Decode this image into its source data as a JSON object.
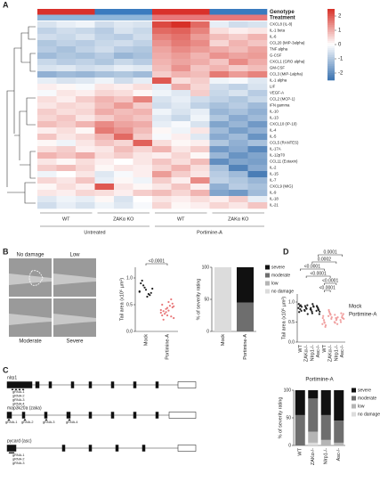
{
  "panels": [
    "A",
    "B",
    "C",
    "D"
  ],
  "images": {
    "labels": [
      "No damage",
      "Low",
      "Moderate",
      "Severe"
    ]
  },
  "diagram": {
    "genes": [
      {
        "name": "nlrp1",
        "guides": [
          "gRNA-1",
          "gRNA-2",
          "gRNA-3",
          "gRNA-4"
        ]
      },
      {
        "name": "map3k20a (zaka)",
        "guides": [
          "gRNA-1",
          "gRNA-2",
          "gRNA-3",
          "gRNA-4"
        ]
      },
      {
        "name": "pycard (asc)",
        "guides": [
          "gRNA-1",
          "gRNA-2",
          "gRNA-3"
        ]
      }
    ]
  },
  "chart_data": [
    {
      "type": "heatmap",
      "annotation_rows": [
        {
          "name": "Genotype",
          "colors": [
            "#d9312b",
            "#d9312b",
            "#d9312b",
            "#3a7bbf",
            "#3a7bbf",
            "#3a7bbf",
            "#d9312b",
            "#d9312b",
            "#d9312b",
            "#3a7bbf",
            "#3a7bbf",
            "#3a7bbf"
          ]
        },
        {
          "name": "Treatment",
          "colors": [
            "#8fb6da",
            "#8fb6da",
            "#8fb6da",
            "#8fb6da",
            "#8fb6da",
            "#8fb6da",
            "#e8787a",
            "#e8787a",
            "#e8787a",
            "#e8787a",
            "#e8787a",
            "#e8787a"
          ]
        }
      ],
      "column_groups": [
        "WT",
        "ZAKα KO",
        "WT",
        "ZAKα KO"
      ],
      "treatment_groups": [
        "Untreated",
        "Portimine-A"
      ],
      "rows": [
        "CXCL8 (IL-8)",
        "IL-1 beta",
        "IL-6",
        "CCL20 (MIP-3alpha)",
        "TNF alpha",
        "G-CSF",
        "CXCL1 (GRO alpha)",
        "GM-CSF",
        "CCL3 (MIP-1alpha)",
        "IL-1 alpha",
        "LIF",
        "VEGF-A",
        "CCL2 (MCP-1)",
        "IFN gamma",
        "IL-10",
        "IL-13",
        "CXCL10 (IP-10)",
        "IL-4",
        "IL-5",
        "CCL5 (RANTES)",
        "IL-17A",
        "IL-12p70",
        "CCL11 (Eotaxin)",
        "IL-2",
        "IL-15",
        "IL-7",
        "CXCL9 (MIG)",
        "IL-9",
        "IL-18",
        "IL-21"
      ],
      "values": [
        [
          -0.5,
          -0.3,
          -0.2,
          -0.6,
          -0.4,
          -0.5,
          2.2,
          2.5,
          1.8,
          -0.3,
          -0.6,
          -0.5
        ],
        [
          -0.8,
          -0.6,
          -0.7,
          -0.9,
          -0.5,
          -0.7,
          1.8,
          1.9,
          1.5,
          0.4,
          0.2,
          0.3
        ],
        [
          -0.6,
          -0.7,
          -0.5,
          -0.8,
          -0.9,
          -0.6,
          1.5,
          1.7,
          1.2,
          0.8,
          0.6,
          0.9
        ],
        [
          -1.0,
          -0.8,
          -0.9,
          -0.7,
          -0.6,
          -0.8,
          1.3,
          1.6,
          1.4,
          0.5,
          0.9,
          0.7
        ],
        [
          -0.9,
          -1.1,
          -0.8,
          -0.6,
          -0.9,
          -1.0,
          1.1,
          1.4,
          1.2,
          1.0,
          0.8,
          1.1
        ],
        [
          -1.2,
          -1.0,
          -1.1,
          -0.9,
          -1.3,
          -1.1,
          1.0,
          1.2,
          0.9,
          1.3,
          1.1,
          1.2
        ],
        [
          -0.7,
          -0.9,
          -0.8,
          -1.0,
          -0.7,
          -0.9,
          0.9,
          1.1,
          1.0,
          0.7,
          1.4,
          1.0
        ],
        [
          -0.5,
          -0.4,
          -0.6,
          -0.5,
          -0.3,
          -0.4,
          0.8,
          1.3,
          0.7,
          0.9,
          0.6,
          0.8
        ],
        [
          -1.4,
          -1.2,
          -1.3,
          -1.1,
          -1.0,
          -1.2,
          0.6,
          0.9,
          0.8,
          1.6,
          1.2,
          1.5
        ],
        [
          -0.3,
          -0.5,
          -0.4,
          -0.2,
          -0.6,
          -0.3,
          2.0,
          0.4,
          0.6,
          -0.2,
          -0.1,
          -0.4
        ],
        [
          0.2,
          0.1,
          -0.1,
          0.3,
          0.2,
          0.4,
          -0.3,
          1.0,
          0.5,
          -0.6,
          -0.8,
          -0.5
        ],
        [
          -0.1,
          0.3,
          0.2,
          0.5,
          0.4,
          0.1,
          -0.2,
          -0.4,
          0.6,
          -0.7,
          -0.5,
          -0.9
        ],
        [
          0.4,
          0.2,
          0.6,
          0.9,
          0.7,
          1.5,
          -0.5,
          -0.3,
          -0.6,
          -0.8,
          -1.0,
          -0.7
        ],
        [
          0.3,
          0.5,
          0.4,
          0.8,
          1.2,
          0.6,
          -0.6,
          -0.4,
          -0.8,
          -1.1,
          -0.9,
          -1.2
        ],
        [
          0.6,
          0.4,
          0.5,
          1.0,
          0.8,
          0.9,
          -0.2,
          -0.5,
          -0.3,
          -1.3,
          -1.1,
          -1.4
        ],
        [
          0.5,
          0.7,
          0.3,
          0.6,
          0.9,
          0.7,
          -0.4,
          -0.7,
          -0.2,
          -1.0,
          -1.5,
          -1.2
        ],
        [
          0.8,
          0.6,
          0.9,
          1.4,
          1.1,
          1.0,
          -0.3,
          -0.1,
          -0.5,
          -1.6,
          -1.3,
          -1.8
        ],
        [
          0.2,
          0.4,
          0.1,
          1.6,
          1.3,
          0.8,
          0.1,
          -0.2,
          0.3,
          -1.2,
          -1.7,
          -1.4
        ],
        [
          0.7,
          0.3,
          0.5,
          0.9,
          1.8,
          0.6,
          -0.1,
          0.2,
          -0.4,
          -1.5,
          -1.2,
          -1.9
        ],
        [
          0.1,
          -0.2,
          0.3,
          0.7,
          0.5,
          1.9,
          0.4,
          0.1,
          0.2,
          -1.0,
          -1.4,
          -1.1
        ],
        [
          0.4,
          0.6,
          0.2,
          0.3,
          0.8,
          0.5,
          0.9,
          0.3,
          0.6,
          -1.8,
          -1.5,
          -2.1
        ],
        [
          0.9,
          0.7,
          1.0,
          0.4,
          0.6,
          0.3,
          0.2,
          0.5,
          0.1,
          -1.3,
          -1.9,
          -1.6
        ],
        [
          0.3,
          0.1,
          0.4,
          0.2,
          0.0,
          0.3,
          0.7,
          0.4,
          0.8,
          -2.0,
          -1.6,
          -1.7
        ],
        [
          0.6,
          0.8,
          0.5,
          0.1,
          0.3,
          0.2,
          0.5,
          0.9,
          0.4,
          -1.1,
          -2.2,
          -1.5
        ],
        [
          -0.2,
          0.0,
          0.3,
          -0.4,
          -0.1,
          0.2,
          1.2,
          0.6,
          0.3,
          -0.9,
          -1.2,
          -2.3
        ],
        [
          0.5,
          0.3,
          0.7,
          -0.3,
          0.1,
          -0.2,
          0.6,
          0.2,
          1.4,
          -0.8,
          -1.0,
          -1.3
        ],
        [
          0.1,
          0.4,
          0.2,
          2.0,
          0.3,
          0.1,
          0.3,
          0.7,
          0.2,
          -1.4,
          -0.9,
          -1.1
        ],
        [
          0.3,
          0.2,
          0.5,
          0.4,
          0.2,
          0.6,
          0.8,
          0.5,
          0.9,
          -1.6,
          -1.8,
          -1.2
        ],
        [
          -0.4,
          -0.2,
          -0.3,
          0.1,
          -0.5,
          0.0,
          0.3,
          0.2,
          0.4,
          0.2,
          0.6,
          -0.3
        ],
        [
          -0.6,
          -0.3,
          -0.5,
          -0.2,
          -0.4,
          -0.1,
          0.5,
          0.1,
          0.2,
          0.5,
          0.3,
          0.7
        ]
      ],
      "zlim": [
        -2.5,
        2.5
      ],
      "colorbar_ticks": [
        2,
        1,
        0,
        -1,
        -2
      ],
      "low_color": "#3a72b0",
      "mid_color": "#ffffff",
      "high_color": "#d73027"
    },
    {
      "type": "strip",
      "ylabel": "Tail area (x10⁵ µm²)",
      "categories": [
        "Mock",
        "Portimine-A"
      ],
      "colors": [
        "#222222",
        "#e8787a"
      ],
      "values": [
        [
          0.75,
          0.82,
          0.68,
          0.9,
          0.78,
          0.72,
          0.95,
          0.65,
          0.8,
          0.86,
          0.7,
          0.74
        ],
        [
          0.35,
          0.42,
          0.28,
          0.5,
          0.3,
          0.45,
          0.38,
          0.55,
          0.25,
          0.33,
          0.48,
          0.4,
          0.36,
          0.6,
          0.3,
          0.44,
          0.52,
          0.22,
          0.39,
          0.47
        ]
      ],
      "ylim": [
        0,
        1.2
      ],
      "yticks": [
        {
          "value": 0,
          "label": "0.0"
        },
        0.5,
        {
          "value": 1,
          "label": "1.0"
        }
      ],
      "annotations": [
        "<0.0001"
      ]
    },
    {
      "type": "stacked_bar",
      "ylabel": "% of severity  rating",
      "categories": [
        "Mock",
        "Portimine-A"
      ],
      "series": [
        {
          "name": "no damage",
          "color": "#dcdcdc",
          "values": [
            100,
            0
          ]
        },
        {
          "name": "low",
          "color": "#b5b5b5",
          "values": [
            0,
            0
          ]
        },
        {
          "name": "moderate",
          "color": "#6e6e6e",
          "values": [
            0,
            45
          ]
        },
        {
          "name": "severe",
          "color": "#111111",
          "values": [
            0,
            55
          ]
        }
      ],
      "ylim": [
        0,
        100
      ],
      "yticks": [
        0,
        50,
        100
      ]
    },
    {
      "type": "strip",
      "ylabel": "Tail area (x10⁵ µm²)",
      "categories": [
        "WT",
        "ZAKα-/-",
        "Nlrp1-/-",
        "Asc-/-",
        "WT",
        "ZAKα-/-",
        "Nlrp1-/-",
        "Asc-/-"
      ],
      "colors": [
        "#222222",
        "#222222",
        "#222222",
        "#222222",
        "#f0a0a0",
        "#f0a0a0",
        "#f0a0a0",
        "#f0a0a0"
      ],
      "values": [
        [
          0.85,
          0.9,
          0.78,
          0.95,
          0.82,
          0.88,
          0.75,
          0.92
        ],
        [
          0.8,
          0.86,
          0.92,
          0.78,
          0.84,
          0.7,
          0.9,
          0.83
        ],
        [
          0.82,
          0.76,
          0.9,
          0.85,
          0.72,
          0.88,
          0.8,
          0.95
        ],
        [
          0.78,
          0.85,
          0.7,
          0.9,
          0.82,
          0.76,
          0.88,
          0.8
        ],
        [
          0.45,
          0.55,
          0.38,
          0.6,
          0.5,
          0.42,
          0.65,
          0.48
        ],
        [
          0.65,
          0.72,
          0.58,
          0.8,
          0.7,
          0.62,
          0.76,
          0.68
        ],
        [
          0.5,
          0.6,
          0.45,
          0.68,
          0.55,
          0.62,
          0.48,
          0.58
        ],
        [
          0.55,
          0.62,
          0.7,
          0.5,
          0.66,
          0.58,
          0.72,
          0.6
        ]
      ],
      "ylim": [
        0,
        1.2
      ],
      "yticks": [
        {
          "value": 0,
          "label": "0.0"
        },
        0.5,
        {
          "value": 1,
          "label": "1.0"
        }
      ],
      "legend": [
        {
          "name": "Mock",
          "color": "#222222"
        },
        {
          "name": "Portimine-A",
          "color": "#f08a8a"
        }
      ],
      "annotations": [
        "0.0001",
        "0.0002",
        "<0.0001",
        "<0.0001",
        "<0.0001",
        "<0.0001"
      ]
    },
    {
      "type": "stacked_bar",
      "title": "Portimine-A",
      "ylabel": "% of severity  rating",
      "categories": [
        "WT",
        "ZAKα-/-",
        "Nlrp1-/-",
        "Asc-/-"
      ],
      "series": [
        {
          "name": "no damage",
          "color": "#dcdcdc",
          "values": [
            0,
            5,
            0,
            0
          ]
        },
        {
          "name": "low",
          "color": "#b5b5b5",
          "values": [
            0,
            20,
            10,
            5
          ]
        },
        {
          "name": "moderate",
          "color": "#6e6e6e",
          "values": [
            55,
            60,
            45,
            40
          ]
        },
        {
          "name": "severe",
          "color": "#111111",
          "values": [
            45,
            15,
            45,
            55
          ]
        }
      ],
      "ylim": [
        0,
        100
      ],
      "yticks": [
        0,
        50,
        100
      ]
    }
  ]
}
